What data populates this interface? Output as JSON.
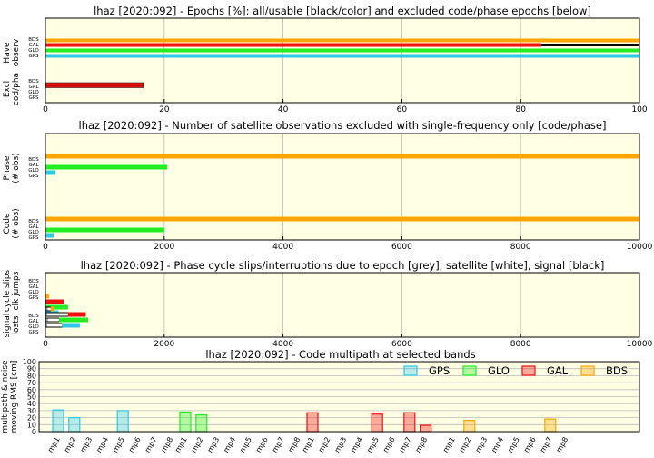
{
  "colors": {
    "plot_bg": "#ffffe4",
    "gps": "#2ec8e8",
    "glo": "#22ee22",
    "gal": "#ee1111",
    "bds": "#ffa500",
    "grid": "#bbbbbb"
  },
  "system_labels": [
    "BDS",
    "GAL",
    "GLO",
    "GPS"
  ],
  "chart_data": [
    {
      "type": "bar",
      "orientation": "horizontal",
      "title": "lhaz [2020:092] - Epochs [%]: all/usable [black/color] and excluded code/phase epochs [below]",
      "xlim": [
        0,
        100
      ],
      "xticks": [
        "0",
        "20",
        "40",
        "60",
        "80",
        "100"
      ],
      "groups": [
        {
          "label": [
            "Have",
            "observ"
          ],
          "rows": [
            {
              "system": "BDS",
              "all": 100,
              "usable": 100
            },
            {
              "system": "GAL",
              "all": 100,
              "usable": 83.5
            },
            {
              "system": "GLO",
              "all": 100,
              "usable": 100
            },
            {
              "system": "GPS",
              "all": 100,
              "usable": 100
            }
          ]
        },
        {
          "label": [
            "Excl",
            "cod/pha"
          ],
          "rows": [
            {
              "system": "BDS",
              "code": 0,
              "phase": 0
            },
            {
              "system": "GAL",
              "code": 16.5,
              "phase": 16.5
            },
            {
              "system": "GLO",
              "code": 0,
              "phase": 0
            },
            {
              "system": "GPS",
              "code": 0,
              "phase": 0
            }
          ]
        }
      ]
    },
    {
      "type": "bar",
      "orientation": "horizontal",
      "title": "lhaz [2020:092] - Number of satellite observations excluded with single-frequency only [code/phase]",
      "xlim": [
        0,
        10000
      ],
      "xticks": [
        "0",
        "2000",
        "4000",
        "6000",
        "8000",
        "10000"
      ],
      "groups": [
        {
          "label": [
            "Phase",
            "(# obs)"
          ],
          "rows": [
            {
              "system": "BDS",
              "value": 10000
            },
            {
              "system": "GAL",
              "value": 0
            },
            {
              "system": "GLO",
              "value": 2050
            },
            {
              "system": "GPS",
              "value": 170
            }
          ]
        },
        {
          "label": [
            "Code",
            "(# obs)"
          ],
          "rows": [
            {
              "system": "BDS",
              "value": 10000
            },
            {
              "system": "GAL",
              "value": 0
            },
            {
              "system": "GLO",
              "value": 2000
            },
            {
              "system": "GPS",
              "value": 140
            }
          ]
        }
      ]
    },
    {
      "type": "bar",
      "orientation": "horizontal",
      "title": "lhaz [2020:092] - Phase cycle slips/interruptions due to epoch [grey], satellite [white], signal [black]",
      "xlim": [
        0,
        10000
      ],
      "xticks": [
        "0",
        "2000",
        "4000",
        "6000",
        "8000",
        "10000"
      ],
      "groups": [
        {
          "label": [
            "cycle slips",
            "clk jumps"
          ],
          "rows": [
            {
              "system": "BDS",
              "slips": 60,
              "clk_jumps": 0
            },
            {
              "system": "GAL",
              "slips": 310,
              "clk_jumps": 0
            },
            {
              "system": "GLO",
              "slips": 380,
              "clk_jumps": 0
            },
            {
              "system": "GPS",
              "slips": 220,
              "clk_jumps": 0
            }
          ]
        },
        {
          "label": [
            "signal",
            "losts"
          ],
          "rows": [
            {
              "system": "BDS",
              "epoch": 40,
              "satellite": 90,
              "signal": 150
            },
            {
              "system": "GAL",
              "epoch": 30,
              "satellite": 380,
              "signal": 680
            },
            {
              "system": "GLO",
              "epoch": 40,
              "satellite": 230,
              "signal": 720
            },
            {
              "system": "GPS",
              "epoch": 30,
              "satellite": 280,
              "signal": 580
            }
          ]
        }
      ]
    },
    {
      "type": "bar",
      "title": "lhaz [2020:092] - Code multipath at selected bands",
      "ylabel": [
        "multipath & noise",
        "moving RMS [cm]"
      ],
      "ylim": [
        0,
        100
      ],
      "yticks": [
        "0",
        "10",
        "20",
        "30",
        "40",
        "50",
        "60",
        "70",
        "80",
        "90",
        "100"
      ],
      "categories": [
        "mp1",
        "mp2",
        "mp3",
        "mp4",
        "mp5",
        "mp6",
        "mp7",
        "mp8"
      ],
      "legend": {
        "position": "top-right"
      },
      "series": [
        {
          "name": "GPS",
          "values": [
            31,
            20,
            0,
            0,
            30,
            0,
            0,
            0
          ]
        },
        {
          "name": "GLO",
          "values": [
            28,
            24,
            0,
            0,
            0,
            0,
            0,
            0
          ]
        },
        {
          "name": "GAL",
          "values": [
            27,
            0,
            0,
            0,
            25,
            0,
            27,
            9
          ]
        },
        {
          "name": "BDS",
          "values": [
            0,
            16,
            0,
            0,
            0,
            0,
            18,
            0
          ]
        }
      ]
    }
  ]
}
